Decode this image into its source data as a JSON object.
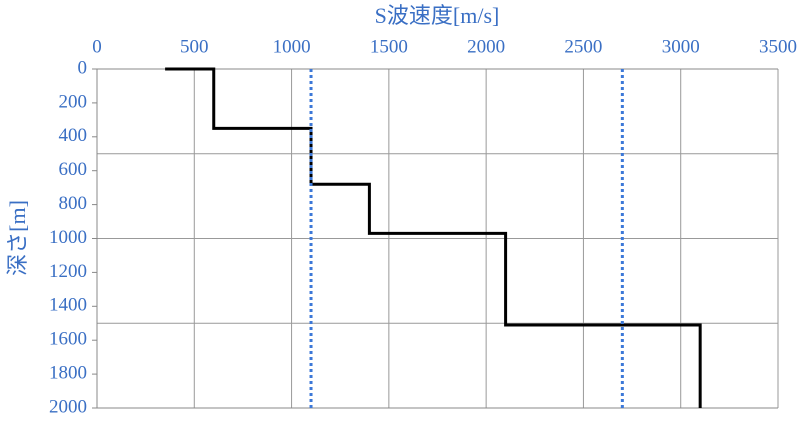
{
  "chart_data": {
    "type": "step-profile",
    "x_title": "S波速度[m/s]",
    "y_title": "深さ[m]",
    "xlim": [
      0,
      3500
    ],
    "xticks": [
      0,
      500,
      1000,
      1500,
      2000,
      2500,
      3000,
      3500
    ],
    "ylim": [
      0,
      2000
    ],
    "yticks": [
      0,
      200,
      400,
      600,
      800,
      1000,
      1200,
      1400,
      1600,
      1800,
      2000
    ],
    "ygrid": [
      500,
      1000,
      1500
    ],
    "y_inverted": true,
    "x_axis_top": true,
    "grid": true,
    "series": [
      {
        "color": "#000000",
        "dashed": false,
        "x": [
          350,
          600,
          600,
          1100,
          1100,
          1400,
          1400,
          2100,
          2100,
          3100,
          3100
        ],
        "y": [
          0,
          0,
          350,
          350,
          680,
          680,
          970,
          970,
          1510,
          1510,
          2000
        ]
      },
      {
        "color": "#3c78d8",
        "dashed": true,
        "x": [
          1100,
          1100
        ],
        "y": [
          0,
          2000
        ]
      },
      {
        "color": "#3c78d8",
        "dashed": true,
        "x": [
          2700,
          2700
        ],
        "y": [
          0,
          2000
        ]
      }
    ]
  }
}
